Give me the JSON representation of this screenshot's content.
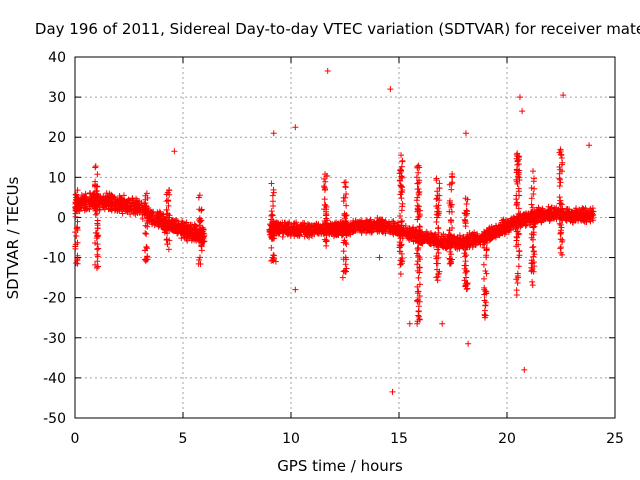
{
  "chart_data": {
    "type": "scatter",
    "title": "Day 196 of 2011, Sidereal Day-to-day VTEC variation (SDTVAR) for receiver mate",
    "xlabel": "GPS time / hours",
    "ylabel": "SDTVAR / TECUs",
    "xlim": [
      0,
      25
    ],
    "ylim": [
      -50,
      40
    ],
    "xticks": [
      0,
      5,
      10,
      15,
      20,
      25
    ],
    "yticks": [
      -50,
      -40,
      -30,
      -20,
      -10,
      0,
      10,
      20,
      30,
      40
    ],
    "grid": true,
    "marker": "+",
    "color": "#ff0000",
    "series": [
      {
        "name": "SDTVAR",
        "segments": [
          {
            "x": [
              0.0,
              0.5,
              1.0,
              1.5,
              2.0,
              2.5,
              3.0,
              3.5,
              4.0,
              4.5,
              5.0,
              5.5,
              6.0
            ],
            "y": [
              3.0,
              4.0,
              4.0,
              4.0,
              3.5,
              3.0,
              2.5,
              0.5,
              -1.0,
              -2.0,
              -3.0,
              -4.0,
              -4.5
            ],
            "spread": 2.5
          },
          {
            "x": [
              9.0,
              10.0,
              11.0,
              12.0,
              13.0,
              14.0,
              15.0,
              16.0,
              17.0,
              18.0,
              19.0,
              20.0,
              21.0,
              22.0,
              23.0,
              24.0
            ],
            "y": [
              -3.0,
              -3.0,
              -3.0,
              -3.0,
              -2.5,
              -2.0,
              -3.0,
              -5.0,
              -6.0,
              -6.0,
              -5.0,
              -2.0,
              0.0,
              1.0,
              0.5,
              0.5
            ],
            "spread": 2.0
          }
        ],
        "spikes": [
          {
            "x": 1.0,
            "ymin": -13,
            "ymax": 13
          },
          {
            "x": 0.05,
            "ymin": -12,
            "ymax": 7
          },
          {
            "x": 3.3,
            "ymin": -11,
            "ymax": 6
          },
          {
            "x": 4.3,
            "ymin": -8,
            "ymax": 7
          },
          {
            "x": 5.8,
            "ymin": -12,
            "ymax": 7
          },
          {
            "x": 9.15,
            "ymin": -11,
            "ymax": 10
          },
          {
            "x": 11.6,
            "ymin": -8,
            "ymax": 11
          },
          {
            "x": 12.5,
            "ymin": -14,
            "ymax": 9
          },
          {
            "x": 15.1,
            "ymin": -15,
            "ymax": 16
          },
          {
            "x": 15.9,
            "ymin": -29,
            "ymax": 13
          },
          {
            "x": 16.8,
            "ymin": -17,
            "ymax": 10
          },
          {
            "x": 17.4,
            "ymin": -12,
            "ymax": 11
          },
          {
            "x": 18.1,
            "ymin": -19,
            "ymax": 6
          },
          {
            "x": 19.0,
            "ymin": -25,
            "ymax": -3
          },
          {
            "x": 20.5,
            "ymin": -20,
            "ymax": 16
          },
          {
            "x": 21.2,
            "ymin": -17,
            "ymax": 12
          },
          {
            "x": 22.5,
            "ymin": -10,
            "ymax": 17
          }
        ],
        "outliers": [
          [
            4.6,
            16.5
          ],
          [
            9.2,
            21.0
          ],
          [
            10.2,
            22.5
          ],
          [
            11.7,
            36.5
          ],
          [
            14.6,
            32.0
          ],
          [
            14.7,
            -43.5
          ],
          [
            15.5,
            -26.5
          ],
          [
            17.0,
            -26.5
          ],
          [
            18.1,
            21.0
          ],
          [
            18.2,
            -31.5
          ],
          [
            20.6,
            30.0
          ],
          [
            20.7,
            26.5
          ],
          [
            20.8,
            -38.0
          ],
          [
            22.6,
            30.5
          ],
          [
            23.8,
            18.0
          ],
          [
            9.3,
            -11.0
          ],
          [
            10.2,
            -18.0
          ],
          [
            12.4,
            -15.0
          ],
          [
            14.1,
            -10.0
          ],
          [
            19.0,
            -22.0
          ]
        ]
      }
    ]
  }
}
